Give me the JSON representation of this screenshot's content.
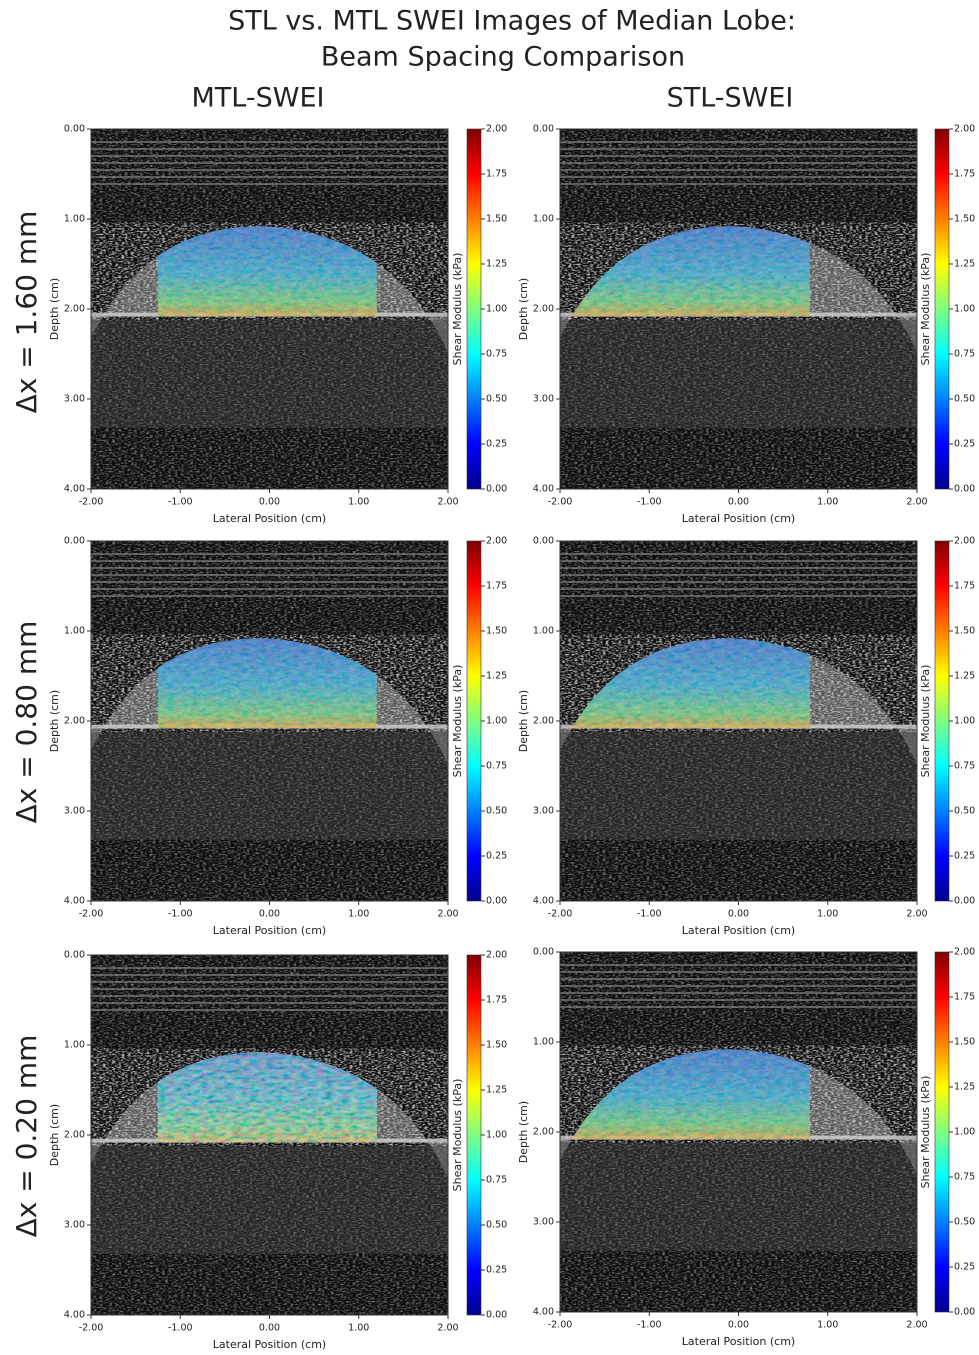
{
  "title": [
    "STL vs. MTL SWEI Images of Median Lobe:",
    "Beam Spacing Comparison"
  ],
  "columns": [
    "MTL-SWEI",
    "STL-SWEI"
  ],
  "rows": [
    "Δx = 1.60 mm",
    "Δx = 0.80 mm",
    "Δx = 0.20 mm"
  ],
  "chart_data": [
    {
      "type": "image",
      "xlabel": "Lateral Position (cm)",
      "ylabel": "Depth (cm)",
      "colorbar_label": "Shear Modulus (kPa)",
      "colormap": "jet",
      "xlim": [
        -2,
        2
      ],
      "ylim": [
        4,
        0
      ],
      "clim": [
        0,
        2
      ],
      "xticks": [
        {
          "value": -2,
          "label": "-2.00"
        },
        {
          "value": -1,
          "label": "-1.00"
        },
        {
          "value": 0,
          "label": "0.00"
        },
        {
          "value": 1,
          "label": "1.00"
        },
        {
          "value": 2,
          "label": "2.00"
        }
      ],
      "yticks": [
        {
          "value": 0,
          "label": "0.00"
        },
        {
          "value": 1,
          "label": "1.00"
        },
        {
          "value": 2,
          "label": "2.00"
        },
        {
          "value": 3,
          "label": "3.00"
        },
        {
          "value": 4,
          "label": "4.00"
        }
      ],
      "cticks": [
        {
          "value": 0,
          "label": "0.00"
        },
        {
          "value": 0.25,
          "label": "0.25"
        },
        {
          "value": 0.5,
          "label": "0.50"
        },
        {
          "value": 0.75,
          "label": "0.75"
        },
        {
          "value": 1,
          "label": "1.00"
        },
        {
          "value": 1.25,
          "label": "1.25"
        },
        {
          "value": 1.5,
          "label": "1.50"
        },
        {
          "value": 1.75,
          "label": "1.75"
        },
        {
          "value": 2,
          "label": "2.00"
        }
      ]
    },
    {
      "type": "image",
      "xlabel": "Lateral Position (cm)",
      "ylabel": "Depth (cm)",
      "colorbar_label": "Shear Modulus (kPa)",
      "colormap": "jet",
      "xlim": [
        -2,
        2
      ],
      "ylim": [
        4,
        0
      ],
      "clim": [
        0,
        2
      ],
      "xticks": [
        {
          "value": -2,
          "label": "-2.00"
        },
        {
          "value": -1,
          "label": "-1.00"
        },
        {
          "value": 0,
          "label": "0.00"
        },
        {
          "value": 1,
          "label": "1.00"
        },
        {
          "value": 2,
          "label": "2.00"
        }
      ],
      "yticks": [
        {
          "value": 0,
          "label": "0.00"
        },
        {
          "value": 1,
          "label": "1.00"
        },
        {
          "value": 2,
          "label": "2.00"
        },
        {
          "value": 3,
          "label": "3.00"
        },
        {
          "value": 4,
          "label": "4.00"
        }
      ],
      "cticks": [
        {
          "value": 0,
          "label": "0.00"
        },
        {
          "value": 0.25,
          "label": "0.25"
        },
        {
          "value": 0.5,
          "label": "0.50"
        },
        {
          "value": 0.75,
          "label": "0.75"
        },
        {
          "value": 1,
          "label": "1.00"
        },
        {
          "value": 1.25,
          "label": "1.25"
        },
        {
          "value": 1.5,
          "label": "1.50"
        },
        {
          "value": 1.75,
          "label": "1.75"
        },
        {
          "value": 2,
          "label": "2.00"
        }
      ]
    },
    {
      "type": "image",
      "xlabel": "Lateral Position (cm)",
      "ylabel": "Depth (cm)",
      "colorbar_label": "Shear Modulus (kPa)",
      "colormap": "jet",
      "xlim": [
        -2,
        2
      ],
      "ylim": [
        4,
        0
      ],
      "clim": [
        0,
        2
      ],
      "xticks": [
        {
          "value": -2,
          "label": "-2.00"
        },
        {
          "value": -1,
          "label": "-1.00"
        },
        {
          "value": 0,
          "label": "0.00"
        },
        {
          "value": 1,
          "label": "1.00"
        },
        {
          "value": 2,
          "label": "2.00"
        }
      ],
      "yticks": [
        {
          "value": 0,
          "label": "0.00"
        },
        {
          "value": 1,
          "label": "1.00"
        },
        {
          "value": 2,
          "label": "2.00"
        },
        {
          "value": 3,
          "label": "3.00"
        },
        {
          "value": 4,
          "label": "4.00"
        }
      ],
      "cticks": [
        {
          "value": 0,
          "label": "0.00"
        },
        {
          "value": 0.25,
          "label": "0.25"
        },
        {
          "value": 0.5,
          "label": "0.50"
        },
        {
          "value": 0.75,
          "label": "0.75"
        },
        {
          "value": 1,
          "label": "1.00"
        },
        {
          "value": 1.25,
          "label": "1.25"
        },
        {
          "value": 1.5,
          "label": "1.50"
        },
        {
          "value": 1.75,
          "label": "1.75"
        },
        {
          "value": 2,
          "label": "2.00"
        }
      ]
    },
    {
      "type": "image",
      "xlabel": "Lateral Position (cm)",
      "ylabel": "Depth (cm)",
      "colorbar_label": "Shear Modulus (kPa)",
      "colormap": "jet",
      "xlim": [
        -2,
        2
      ],
      "ylim": [
        4,
        0
      ],
      "clim": [
        0,
        2
      ],
      "xticks": [
        {
          "value": -2,
          "label": "-2.00"
        },
        {
          "value": -1,
          "label": "-1.00"
        },
        {
          "value": 0,
          "label": "0.00"
        },
        {
          "value": 1,
          "label": "1.00"
        },
        {
          "value": 2,
          "label": "2.00"
        }
      ],
      "yticks": [
        {
          "value": 0,
          "label": "0.00"
        },
        {
          "value": 1,
          "label": "1.00"
        },
        {
          "value": 2,
          "label": "2.00"
        },
        {
          "value": 3,
          "label": "3.00"
        },
        {
          "value": 4,
          "label": "4.00"
        }
      ],
      "cticks": [
        {
          "value": 0,
          "label": "0.00"
        },
        {
          "value": 0.25,
          "label": "0.25"
        },
        {
          "value": 0.5,
          "label": "0.50"
        },
        {
          "value": 0.75,
          "label": "0.75"
        },
        {
          "value": 1,
          "label": "1.00"
        },
        {
          "value": 1.25,
          "label": "1.25"
        },
        {
          "value": 1.5,
          "label": "1.50"
        },
        {
          "value": 1.75,
          "label": "1.75"
        },
        {
          "value": 2,
          "label": "2.00"
        }
      ]
    },
    {
      "type": "image",
      "xlabel": "Lateral Position (cm)",
      "ylabel": "Depth (cm)",
      "colorbar_label": "Shear Modulus (kPa)",
      "colormap": "jet",
      "xlim": [
        -2,
        2
      ],
      "ylim": [
        4,
        0
      ],
      "clim": [
        0,
        2
      ],
      "xticks": [
        {
          "value": -2,
          "label": "-2.00"
        },
        {
          "value": -1,
          "label": "-1.00"
        },
        {
          "value": 0,
          "label": "0.00"
        },
        {
          "value": 1,
          "label": "1.00"
        },
        {
          "value": 2,
          "label": "2.00"
        }
      ],
      "yticks": [
        {
          "value": 0,
          "label": "0.00"
        },
        {
          "value": 1,
          "label": "1.00"
        },
        {
          "value": 2,
          "label": "2.00"
        },
        {
          "value": 3,
          "label": "3.00"
        },
        {
          "value": 4,
          "label": "4.00"
        }
      ],
      "cticks": [
        {
          "value": 0,
          "label": "0.00"
        },
        {
          "value": 0.25,
          "label": "0.25"
        },
        {
          "value": 0.5,
          "label": "0.50"
        },
        {
          "value": 0.75,
          "label": "0.75"
        },
        {
          "value": 1,
          "label": "1.00"
        },
        {
          "value": 1.25,
          "label": "1.25"
        },
        {
          "value": 1.5,
          "label": "1.50"
        },
        {
          "value": 1.75,
          "label": "1.75"
        },
        {
          "value": 2,
          "label": "2.00"
        }
      ]
    },
    {
      "type": "image",
      "xlabel": "Lateral Position (cm)",
      "ylabel": "Depth (cm)",
      "colorbar_label": "Shear Modulus (kPa)",
      "colormap": "jet",
      "xlim": [
        -2,
        2
      ],
      "ylim": [
        4,
        0
      ],
      "clim": [
        0,
        2
      ],
      "xticks": [
        {
          "value": -2,
          "label": "-2.00"
        },
        {
          "value": -1,
          "label": "-1.00"
        },
        {
          "value": 0,
          "label": "0.00"
        },
        {
          "value": 1,
          "label": "1.00"
        },
        {
          "value": 2,
          "label": "2.00"
        }
      ],
      "yticks": [
        {
          "value": 0,
          "label": "0.00"
        },
        {
          "value": 1,
          "label": "1.00"
        },
        {
          "value": 2,
          "label": "2.00"
        },
        {
          "value": 3,
          "label": "3.00"
        },
        {
          "value": 4,
          "label": "4.00"
        }
      ],
      "cticks": [
        {
          "value": 0,
          "label": "0.00"
        },
        {
          "value": 0.25,
          "label": "0.25"
        },
        {
          "value": 0.5,
          "label": "0.50"
        },
        {
          "value": 0.75,
          "label": "0.75"
        },
        {
          "value": 1,
          "label": "1.00"
        },
        {
          "value": 1.25,
          "label": "1.25"
        },
        {
          "value": 1.5,
          "label": "1.50"
        },
        {
          "value": 1.75,
          "label": "1.75"
        },
        {
          "value": 2,
          "label": "2.00"
        }
      ]
    }
  ]
}
